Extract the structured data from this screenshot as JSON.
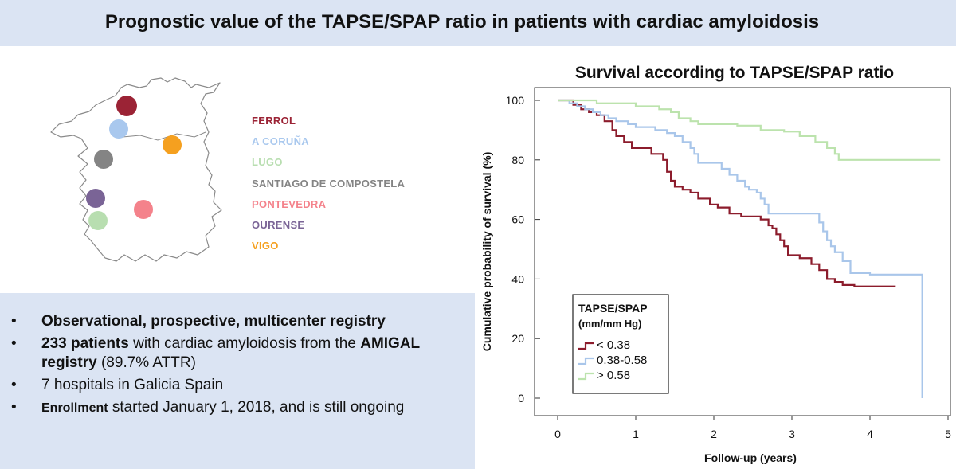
{
  "header": {
    "title": "Prognostic value of the TAPSE/SPAP ratio in patients with cardiac amyloidosis"
  },
  "map": {
    "outline_color": "#8a8a8a",
    "cities": [
      {
        "name": "FERROL",
        "color": "#9b2335"
      },
      {
        "name": "A CORUÑA",
        "color": "#a9c8ee"
      },
      {
        "name": "LUGO",
        "color": "#b8deb0"
      },
      {
        "name": "SANTIAGO DE COMPOSTELA",
        "color": "#848484"
      },
      {
        "name": "PONTEVEDRA",
        "color": "#f4828b"
      },
      {
        "name": "OURENSE",
        "color": "#7a6496"
      },
      {
        "name": "VIGO",
        "color": "#f5a01f"
      }
    ]
  },
  "registry": {
    "items": [
      {
        "bullet": "•",
        "parts": [
          {
            "text": "Observational, prospective, multicenter registry",
            "style": "bold"
          }
        ]
      },
      {
        "bullet": "•",
        "parts": [
          {
            "text": "233 patients",
            "style": "bold"
          },
          {
            "text": " with cardiac amyloidosis from the ",
            "style": "normal"
          },
          {
            "text": "AMIGAL registry",
            "style": "bold"
          },
          {
            "text": " (89.7% ATTR)",
            "style": "normal"
          }
        ]
      },
      {
        "bullet": "•",
        "parts": [
          {
            "text": "7 hospitals in Galicia Spain",
            "style": "normal"
          }
        ]
      },
      {
        "bullet": "•",
        "parts": [
          {
            "text": "Enrollment",
            "style": "small-bold"
          },
          {
            "text": " started January 1, 2018, and is still ongoing",
            "style": "normal"
          }
        ]
      }
    ]
  },
  "chart_data": {
    "type": "line",
    "step": true,
    "title": "Survival according to TAPSE/SPAP ratio",
    "xlabel": "Follow-up (years)",
    "ylabel": "Cumulative probability of survival (%)",
    "xlim": [
      0,
      5
    ],
    "ylim": [
      0,
      100
    ],
    "xticks": [
      0,
      1,
      2,
      3,
      4,
      5
    ],
    "yticks": [
      0,
      20,
      40,
      60,
      80,
      100
    ],
    "grid": false,
    "legend": {
      "title": "TAPSE/SPAP",
      "subtitle": "(mm/mm Hg)",
      "position": "bottom-left"
    },
    "series": [
      {
        "name": "< 0.38",
        "color": "#8c1c2c",
        "x": [
          0,
          0.2,
          0.3,
          0.4,
          0.5,
          0.6,
          0.7,
          0.75,
          0.85,
          0.95,
          1.2,
          1.35,
          1.4,
          1.45,
          1.5,
          1.6,
          1.7,
          1.8,
          1.95,
          2.05,
          2.2,
          2.35,
          2.6,
          2.7,
          2.75,
          2.8,
          2.85,
          2.9,
          2.95,
          3.1,
          3.25,
          3.35,
          3.45,
          3.55,
          3.65,
          3.8,
          4.0,
          4.33
        ],
        "y": [
          100,
          98.5,
          97,
          96,
          95,
          93,
          90,
          88,
          86,
          84,
          82,
          80,
          76,
          73,
          71,
          70,
          69,
          67,
          65,
          64,
          62,
          61,
          60,
          58,
          57,
          55,
          53,
          51,
          48,
          47,
          45,
          43,
          40,
          39,
          38,
          37.5,
          37.5,
          37.5
        ]
      },
      {
        "name": "0.38-0.58",
        "color": "#a9c6ea",
        "x": [
          0,
          0.15,
          0.25,
          0.35,
          0.45,
          0.55,
          0.65,
          0.75,
          0.9,
          1.0,
          1.25,
          1.4,
          1.5,
          1.6,
          1.7,
          1.75,
          1.8,
          2.1,
          2.2,
          2.3,
          2.4,
          2.45,
          2.55,
          2.6,
          2.65,
          2.7,
          3.35,
          3.4,
          3.45,
          3.5,
          3.55,
          3.65,
          3.75,
          4.0,
          4.6,
          4.67
        ],
        "y": [
          100,
          99,
          98,
          97,
          96,
          95,
          94,
          93,
          92,
          91,
          90,
          89,
          88,
          86,
          84,
          82,
          79,
          77,
          75,
          73,
          71,
          70,
          69,
          67,
          65,
          62,
          59,
          56,
          53,
          51,
          49,
          46,
          42,
          41.5,
          41.5,
          0
        ]
      },
      {
        "name": "> 0.58",
        "color": "#bce3ad",
        "x": [
          0,
          0.45,
          0.5,
          0.8,
          1.0,
          1.3,
          1.45,
          1.55,
          1.7,
          1.8,
          2.1,
          2.3,
          2.6,
          2.9,
          3.1,
          3.3,
          3.45,
          3.55,
          3.6,
          4.9
        ],
        "y": [
          100,
          100,
          99,
          99,
          98,
          97,
          96,
          94,
          93,
          92,
          92,
          91.5,
          90,
          89.5,
          88,
          86,
          84,
          82,
          80,
          80
        ]
      }
    ]
  }
}
